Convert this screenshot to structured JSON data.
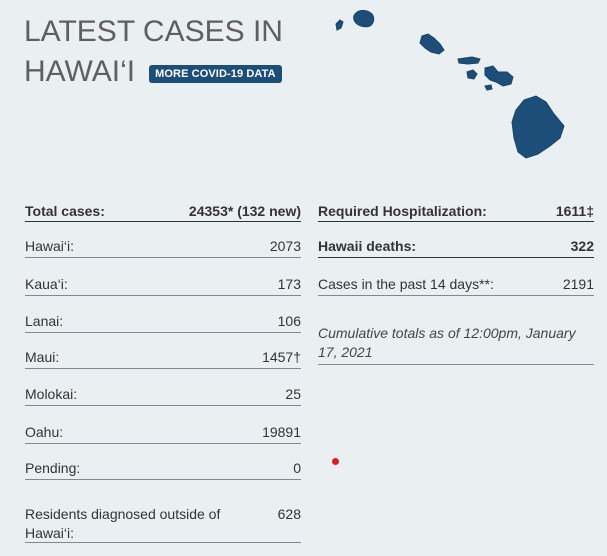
{
  "header": {
    "title_line1": "LATEST CASES IN",
    "title_line2": "HAWAI‘I",
    "covid_button_label": "MORE COVID-19 DATA"
  },
  "left_stats": [
    {
      "label": "Total cases:",
      "value": "24353* (132 new)"
    },
    {
      "label": "Hawai‘i:",
      "value": "2073"
    },
    {
      "label": "Kaua‘i:",
      "value": "173"
    },
    {
      "label": "Lanai:",
      "value": "106"
    },
    {
      "label": "Maui:",
      "value": "1457†"
    },
    {
      "label": "Molokai:",
      "value": "25"
    },
    {
      "label": "Oahu:",
      "value": "19891"
    },
    {
      "label": "Pending:",
      "value": "0"
    },
    {
      "label": "Residents diagnosed outside of Hawai‘i:",
      "value": "628"
    }
  ],
  "right_stats": [
    {
      "label": "Required Hospitalization:",
      "value": "1611‡"
    },
    {
      "label": "Hawaii deaths:",
      "value": "322"
    },
    {
      "label": "Cases in the past 14 days**:",
      "value": "2191"
    }
  ],
  "note": "Cumulative totals as of 12:00pm, January 17, 2021",
  "colors": {
    "background": "#eaeff2",
    "map_island": "#1d4e79",
    "button": "#1d4e79",
    "dot": "#d8201c"
  },
  "icons": {
    "map": "hawaii-islands-map",
    "dot": "red-dot-marker"
  }
}
